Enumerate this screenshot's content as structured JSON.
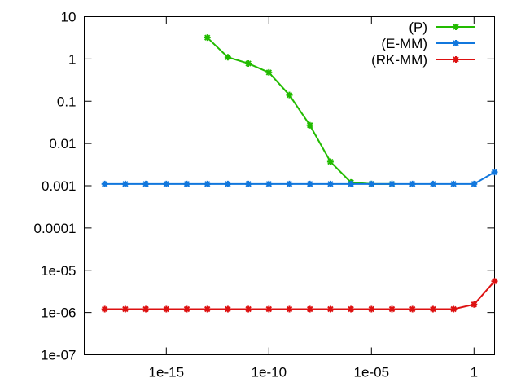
{
  "chart_data": {
    "type": "line",
    "x_scale": "log",
    "y_scale": "log",
    "xlim": [
      1e-19,
      10
    ],
    "ylim": [
      1e-07,
      10
    ],
    "x_ticks": [
      {
        "value": 1e-15,
        "label": "1e-15"
      },
      {
        "value": 1e-10,
        "label": "1e-10"
      },
      {
        "value": 1e-05,
        "label": "1e-05"
      },
      {
        "value": 1,
        "label": "1"
      }
    ],
    "y_ticks": [
      {
        "value": 10,
        "label": "10"
      },
      {
        "value": 1,
        "label": "1"
      },
      {
        "value": 0.1,
        "label": "0.1"
      },
      {
        "value": 0.01,
        "label": "0.01"
      },
      {
        "value": 0.001,
        "label": "0.001"
      },
      {
        "value": 0.0001,
        "label": "0.0001"
      },
      {
        "value": 1e-05,
        "label": "1e-05"
      },
      {
        "value": 1e-06,
        "label": "1e-06"
      },
      {
        "value": 1e-07,
        "label": "1e-07"
      }
    ],
    "grid": false,
    "legend_position": "top-right",
    "series": [
      {
        "name": "(P)",
        "color": "#22bb00",
        "x": [
          1e-13,
          1e-12,
          1e-11,
          1e-10,
          1e-09,
          1e-08,
          1e-07,
          1e-06,
          1e-05,
          0.0001
        ],
        "y": [
          3.2,
          1.1,
          0.78,
          0.48,
          0.14,
          0.027,
          0.0037,
          0.0012,
          0.0011,
          0.0011
        ]
      },
      {
        "name": "(E-MM)",
        "color": "#1177dd",
        "x": [
          1e-18,
          1e-17,
          1e-16,
          1e-15,
          1e-14,
          1e-13,
          1e-12,
          1e-11,
          1e-10,
          1e-09,
          1e-08,
          1e-07,
          1e-06,
          1e-05,
          0.0001,
          0.001,
          0.01,
          0.1,
          1,
          10
        ],
        "y": [
          0.0011,
          0.0011,
          0.0011,
          0.0011,
          0.0011,
          0.0011,
          0.0011,
          0.0011,
          0.0011,
          0.0011,
          0.0011,
          0.0011,
          0.0011,
          0.0011,
          0.0011,
          0.0011,
          0.0011,
          0.0011,
          0.0011,
          0.0021
        ]
      },
      {
        "name": "(RK-MM)",
        "color": "#dd1111",
        "x": [
          1e-18,
          1e-17,
          1e-16,
          1e-15,
          1e-14,
          1e-13,
          1e-12,
          1e-11,
          1e-10,
          1e-09,
          1e-08,
          1e-07,
          1e-06,
          1e-05,
          0.0001,
          0.001,
          0.01,
          0.1,
          1,
          10
        ],
        "y": [
          1.2e-06,
          1.2e-06,
          1.2e-06,
          1.2e-06,
          1.2e-06,
          1.2e-06,
          1.2e-06,
          1.2e-06,
          1.2e-06,
          1.2e-06,
          1.2e-06,
          1.2e-06,
          1.2e-06,
          1.2e-06,
          1.2e-06,
          1.2e-06,
          1.2e-06,
          1.2e-06,
          1.55e-06,
          5.5e-06
        ]
      }
    ]
  }
}
